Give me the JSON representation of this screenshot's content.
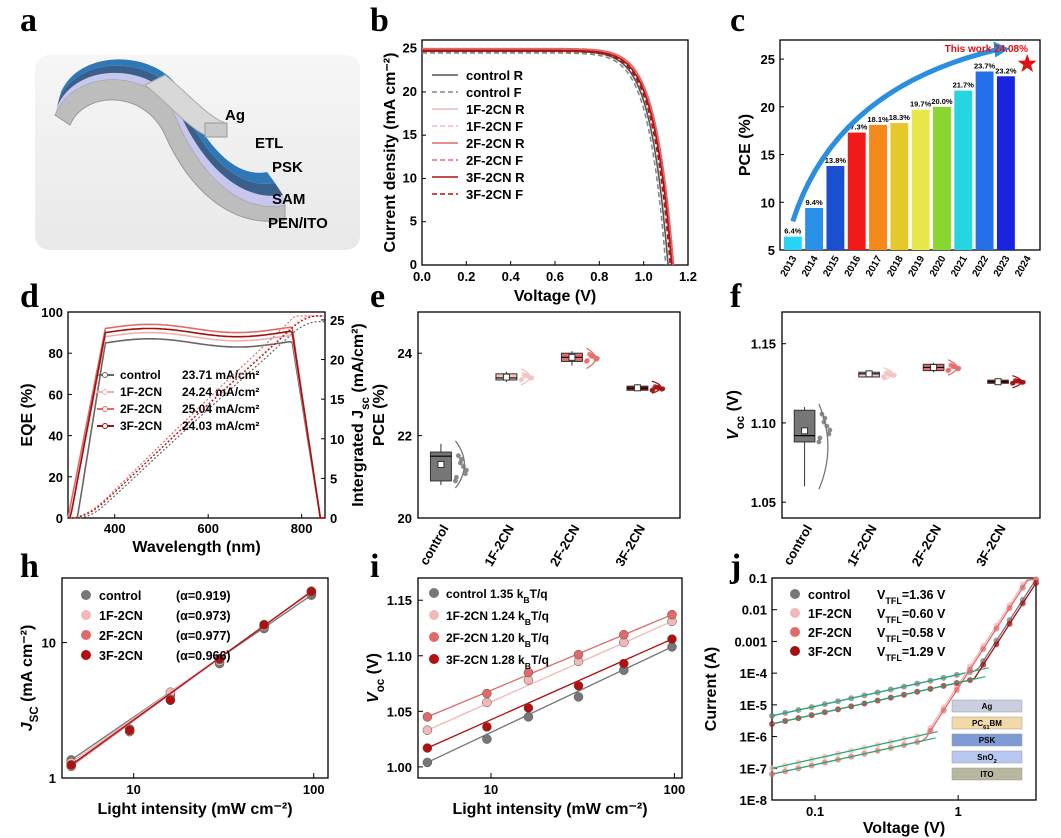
{
  "labels": {
    "a": "a",
    "b": "b",
    "c": "c",
    "d": "d",
    "e": "e",
    "f": "f",
    "h": "h",
    "i": "i",
    "j": "j"
  },
  "schematic": {
    "layers": [
      "Ag",
      "ETL",
      "PSK",
      "SAM",
      "PEN/ITO"
    ],
    "colors": {
      "Ag": "#c9c9c9",
      "ETL": "#2f78b8",
      "PSK": "#3a5f8a",
      "SAM": "#c6c6ee",
      "PEN": "#bdbdbd"
    }
  },
  "chart_data": [
    {
      "id": "b",
      "type": "line",
      "xlabel": "Voltage (V)",
      "ylabel": "Current density (mA cm⁻²)",
      "xlim": [
        0,
        1.2
      ],
      "ylim": [
        0,
        26
      ],
      "xticks": [
        "0.0",
        "0.2",
        "0.4",
        "0.6",
        "0.8",
        "1.0",
        "1.2"
      ],
      "yticks": [
        "0",
        "5",
        "10",
        "15",
        "20",
        "25"
      ],
      "series": [
        {
          "name": "control R",
          "color": "#555555",
          "dash": false,
          "voc": 1.11,
          "jsc": 24.7
        },
        {
          "name": "control F",
          "color": "#888888",
          "dash": true,
          "voc": 1.1,
          "jsc": 24.5
        },
        {
          "name": "1F-2CN R",
          "color": "#f2b8b8",
          "dash": false,
          "voc": 1.13,
          "jsc": 24.9
        },
        {
          "name": "1F-2CN F",
          "color": "#f2b8b8",
          "dash": true,
          "voc": 1.12,
          "jsc": 24.8
        },
        {
          "name": "2F-2CN R",
          "color": "#e06a6a",
          "dash": false,
          "voc": 1.135,
          "jsc": 25.0
        },
        {
          "name": "2F-2CN F",
          "color": "#e06a6a",
          "dash": true,
          "voc": 1.13,
          "jsc": 25.0
        },
        {
          "name": "3F-2CN R",
          "color": "#b01010",
          "dash": false,
          "voc": 1.127,
          "jsc": 24.8
        },
        {
          "name": "3F-2CN F",
          "color": "#b01010",
          "dash": true,
          "voc": 1.12,
          "jsc": 24.7
        }
      ]
    },
    {
      "id": "c",
      "type": "bar",
      "ylabel": "PCE (%)",
      "ylim": [
        5,
        27
      ],
      "xticks": [
        "2013",
        "2014",
        "2015",
        "2016",
        "2017",
        "2018",
        "2019",
        "2020",
        "2021",
        "2022",
        "2023",
        "2024"
      ],
      "yticks": [
        "5",
        "10",
        "15",
        "20",
        "25"
      ],
      "categories": [
        "2013",
        "2014",
        "2015",
        "2016",
        "2017",
        "2018",
        "2019",
        "2020",
        "2021",
        "2022",
        "2023"
      ],
      "values": [
        6.4,
        9.4,
        13.8,
        17.3,
        18.1,
        18.3,
        19.7,
        20.0,
        21.7,
        23.7,
        23.2
      ],
      "value_labels": [
        "6.4%",
        "9.4%",
        "13.8%",
        "17.3%",
        "18.1%",
        "18.3%",
        "19.7%",
        "20.0%",
        "21.7%",
        "23.7%",
        "23.2%"
      ],
      "colors": [
        "#29d3f5",
        "#2a90e8",
        "#1a4fcf",
        "#f01a1a",
        "#f58a1a",
        "#e6c82a",
        "#e8e84a",
        "#8ad630",
        "#25d6e0",
        "#2470e8",
        "#1a24e0"
      ],
      "annotation": {
        "text": "This work 24.08%",
        "x": "2024",
        "value": 24.08,
        "color": "#e01010"
      }
    },
    {
      "id": "d",
      "type": "line",
      "xlabel": "Wavelength (nm)",
      "ylabel": "EQE (%)",
      "y2label": "Intergrated J",
      "y2label_sub": "sc",
      "y2label_unit": " (mA/cm²)",
      "xlim": [
        300,
        850
      ],
      "ylim": [
        0,
        100
      ],
      "y2lim": [
        0,
        26
      ],
      "xticks": [
        "400",
        "600",
        "800"
      ],
      "yticks": [
        "0",
        "20",
        "40",
        "60",
        "80",
        "100"
      ],
      "y2ticks": [
        "0",
        "5",
        "10",
        "15",
        "20",
        "25"
      ],
      "series": [
        {
          "name": "control",
          "jsc": "23.71 mA/cm²",
          "color": "#666666"
        },
        {
          "name": "1F-2CN",
          "jsc": "24.24 mA/cm²",
          "color": "#f0b0b0"
        },
        {
          "name": "2F-2CN",
          "jsc": "25.04 mA/cm²",
          "color": "#e06a6a"
        },
        {
          "name": "3F-2CN",
          "jsc": "24.03 mA/cm²",
          "color": "#a01010"
        }
      ]
    },
    {
      "id": "e",
      "type": "box",
      "ylabel": "PCE (%)",
      "ylim": [
        20,
        25
      ],
      "yticks": [
        "20",
        "22",
        "24"
      ],
      "categories": [
        "control",
        "1F-2CN",
        "2F-2CN",
        "3F-2CN"
      ],
      "boxes": [
        {
          "q1": 20.9,
          "median": 21.5,
          "q3": 21.6,
          "min": 20.8,
          "max": 21.8,
          "mean": 21.3,
          "color": "#777777"
        },
        {
          "q1": 23.35,
          "median": 23.4,
          "q3": 23.5,
          "min": 23.3,
          "max": 23.55,
          "mean": 23.42,
          "color": "#f2c4c4"
        },
        {
          "q1": 23.8,
          "median": 23.9,
          "q3": 24.0,
          "min": 23.7,
          "max": 24.05,
          "mean": 23.9,
          "color": "#e56c6c"
        },
        {
          "q1": 23.1,
          "median": 23.15,
          "q3": 23.2,
          "min": 23.1,
          "max": 23.25,
          "mean": 23.16,
          "color": "#a11212"
        }
      ]
    },
    {
      "id": "f",
      "type": "box",
      "ylabel": "V",
      "ylabel_sub": "oc",
      "ylabel_unit": " (V)",
      "ylim": [
        1.04,
        1.17
      ],
      "yticks": [
        "1.05",
        "1.10",
        "1.15"
      ],
      "categories": [
        "control",
        "1F-2CN",
        "2F-2CN",
        "3F-2CN"
      ],
      "boxes": [
        {
          "q1": 1.088,
          "median": 1.092,
          "q3": 1.108,
          "min": 1.06,
          "max": 1.11,
          "mean": 1.095,
          "color": "#777777"
        },
        {
          "q1": 1.129,
          "median": 1.131,
          "q3": 1.132,
          "min": 1.129,
          "max": 1.133,
          "mean": 1.131,
          "color": "#f2c4c4"
        },
        {
          "q1": 1.133,
          "median": 1.135,
          "q3": 1.137,
          "min": 1.132,
          "max": 1.138,
          "mean": 1.135,
          "color": "#e56c6c"
        },
        {
          "q1": 1.125,
          "median": 1.126,
          "q3": 1.127,
          "min": 1.124,
          "max": 1.128,
          "mean": 1.126,
          "color": "#a11212"
        }
      ]
    },
    {
      "id": "h",
      "type": "scatter",
      "xlabel": "Light intensity",
      "xlabel_unit": " (mW cm⁻²)",
      "ylabel": "J",
      "ylabel_sub": "SC",
      "ylabel_unit": " (mA cm⁻²)",
      "xscale": "log",
      "yscale": "log",
      "xlim": [
        4,
        120
      ],
      "ylim": [
        1,
        30
      ],
      "xticks": [
        "10",
        "100"
      ],
      "yticks": [
        "1",
        "10"
      ],
      "x": [
        4.5,
        9.5,
        16,
        30,
        53,
        97
      ],
      "series": [
        {
          "name": "control",
          "alpha": "(α=0.919)",
          "color": "#777777",
          "y": [
            1.36,
            2.3,
            4.1,
            7.0,
            12.7,
            22.4
          ]
        },
        {
          "name": "1F-2CN",
          "alpha": "(α=0.973)",
          "color": "#f2b8b8",
          "y": [
            1.3,
            2.25,
            4.3,
            7.3,
            13.2,
            23.5
          ]
        },
        {
          "name": "2F-2CN",
          "alpha": "(α=0.977)",
          "color": "#e06a6a",
          "y": [
            1.22,
            2.2,
            3.8,
            7.5,
            13.6,
            24.0
          ]
        },
        {
          "name": "3F-2CN",
          "alpha": "(α=0.966)",
          "color": "#b01010",
          "y": [
            1.25,
            2.25,
            3.75,
            7.6,
            13.5,
            23.8
          ]
        }
      ]
    },
    {
      "id": "i",
      "type": "scatter",
      "xlabel": "Light intensity",
      "xlabel_unit": " (mW cm⁻²)",
      "ylabel": "V",
      "ylabel_sub": "oc",
      "ylabel_unit": " (V)",
      "xscale": "log",
      "xlim": [
        4,
        110
      ],
      "ylim": [
        0.99,
        1.17
      ],
      "xticks": [
        "10",
        "100"
      ],
      "yticks": [
        "1.00",
        "1.05",
        "1.10",
        "1.15"
      ],
      "x": [
        4.5,
        9.5,
        16,
        30,
        53,
        97
      ],
      "series": [
        {
          "name": "control",
          "slope": "1.35 k",
          "slope_sub": "B",
          "slope_unit": "T/q",
          "color": "#777777",
          "y": [
            1.004,
            1.025,
            1.045,
            1.063,
            1.087,
            1.108
          ]
        },
        {
          "name": "1F-2CN",
          "slope": "1.24 k",
          "slope_sub": "B",
          "slope_unit": "T/q",
          "color": "#f2b8b8",
          "y": [
            1.033,
            1.058,
            1.078,
            1.095,
            1.112,
            1.131
          ]
        },
        {
          "name": "2F-2CN",
          "slope": "1.20 k",
          "slope_sub": "B",
          "slope_unit": "T/q",
          "color": "#e06a6a",
          "y": [
            1.045,
            1.066,
            1.085,
            1.101,
            1.119,
            1.137
          ]
        },
        {
          "name": "3F-2CN",
          "slope": "1.28 k",
          "slope_sub": "B",
          "slope_unit": "T/q",
          "color": "#b01010",
          "y": [
            1.017,
            1.036,
            1.053,
            1.073,
            1.093,
            1.115
          ]
        }
      ]
    },
    {
      "id": "j",
      "type": "line",
      "xlabel": "Voltage (V)",
      "ylabel": "Current (A)",
      "xscale": "log",
      "yscale": "log",
      "xlim": [
        0.05,
        3.5
      ],
      "ylim": [
        1e-08,
        0.1
      ],
      "xticks": [
        "0.1",
        "1"
      ],
      "yticks": [
        "1E-8",
        "1E-7",
        "1E-6",
        "1E-5",
        "1E-4",
        "0.001",
        "0.01",
        "0.1"
      ],
      "series": [
        {
          "name": "control",
          "vtfl": "V",
          "vtfl_sub": "TFL",
          "vtfl_val": "=1.36 V",
          "color": "#777777",
          "ohm": 9e-06,
          "vt": 1.36
        },
        {
          "name": "1F-2CN",
          "vtfl": "V",
          "vtfl_sub": "TFL",
          "vtfl_val": "=0.60 V",
          "color": "#f2b8b8",
          "ohm": 2e-07,
          "vt": 0.6
        },
        {
          "name": "2F-2CN",
          "vtfl": "V",
          "vtfl_sub": "TFL",
          "vtfl_val": "=0.58 V",
          "color": "#e06a6a",
          "ohm": 1.3e-07,
          "vt": 0.58
        },
        {
          "name": "3F-2CN",
          "vtfl": "V",
          "vtfl_sub": "TFL",
          "vtfl_val": "=1.29 V",
          "color": "#a01010",
          "ohm": 5e-06,
          "vt": 1.29
        }
      ],
      "inset_layers": [
        {
          "label": "Ag",
          "color": "#c9cfe0"
        },
        {
          "label": "PC",
          "sub": "61",
          "tail": "BM",
          "color": "#f3d9a8"
        },
        {
          "label": "PSK",
          "color": "#7f9bd6"
        },
        {
          "label": "SnO",
          "sub": "2",
          "tail": "",
          "color": "#b8c8f0"
        },
        {
          "label": "ITO",
          "color": "#b8b8a0"
        }
      ]
    }
  ]
}
